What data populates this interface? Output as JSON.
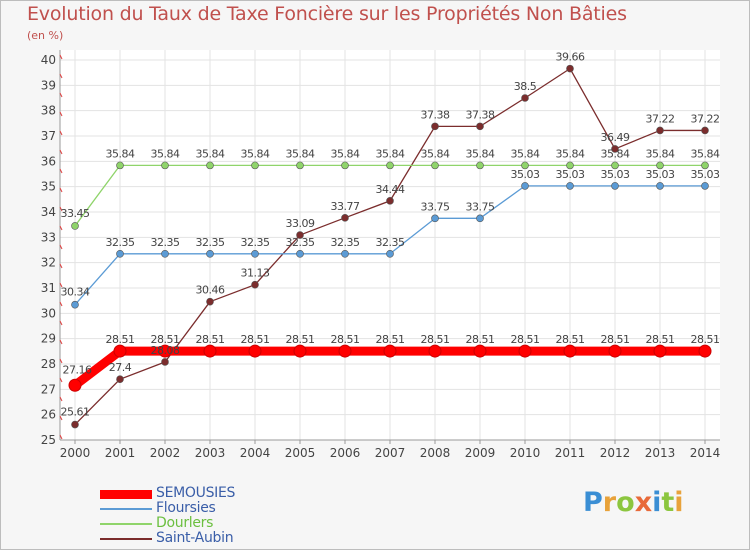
{
  "title": "Evolution du Taux de Taxe Foncière sur les Propriétés Non Bâties",
  "unit_label": "(en %)",
  "logo": {
    "text": "Proxiti",
    "letters": [
      {
        "ch": "P",
        "color": "#3a8ed4"
      },
      {
        "ch": "r",
        "color": "#e8a23a"
      },
      {
        "ch": "o",
        "color": "#8cc63f"
      },
      {
        "ch": "x",
        "color": "#e86a3a"
      },
      {
        "ch": "i",
        "color": "#3a8ed4"
      },
      {
        "ch": "t",
        "color": "#8cc63f"
      },
      {
        "ch": "i",
        "color": "#e8a23a"
      }
    ]
  },
  "chart_data": {
    "type": "line",
    "title": "Evolution du Taux de Taxe Foncière sur les Propriétés Non Bâties",
    "ylabel": "(en %)",
    "xlabel": "",
    "x": [
      "2000",
      "2001",
      "2002",
      "2003",
      "2004",
      "2005",
      "2006",
      "2007",
      "2008",
      "2009",
      "2010",
      "2011",
      "2012",
      "2013",
      "2014"
    ],
    "ylim": [
      25,
      40
    ],
    "yticks": [
      "25",
      "26",
      "27",
      "28",
      "29",
      "30",
      "31",
      "32",
      "33",
      "34",
      "35",
      "36",
      "37",
      "38",
      "39",
      "40"
    ],
    "grid": true,
    "legend_position": "bottom-left",
    "series": [
      {
        "name": "SEMOUSIES",
        "color": "#ff0000",
        "values": [
          27.16,
          28.51,
          28.51,
          28.51,
          28.51,
          28.51,
          28.51,
          28.51,
          28.51,
          28.51,
          28.51,
          28.51,
          28.51,
          28.51,
          28.51
        ],
        "labels": [
          "27.16",
          "28.51",
          "28.51",
          "28.51",
          "28.51",
          "28.51",
          "28.51",
          "28.51",
          "28.51",
          "28.51",
          "28.51",
          "28.51",
          "28.51",
          "28.51",
          "28.51"
        ]
      },
      {
        "name": "Floursies",
        "color": "#5b9bd5",
        "values": [
          30.34,
          32.35,
          32.35,
          32.35,
          32.35,
          32.35,
          32.35,
          32.35,
          33.75,
          33.75,
          35.03,
          35.03,
          35.03,
          35.03,
          35.03
        ],
        "labels": [
          "30.34",
          "32.35",
          "32.35",
          "32.35",
          "32.35",
          "32.35",
          "32.35",
          "32.35",
          "33.75",
          "33.75",
          "35.03",
          "35.03",
          "35.03",
          "35.03",
          "35.03"
        ]
      },
      {
        "name": "Dourlers",
        "color": "#8fd46a",
        "values": [
          33.45,
          35.84,
          35.84,
          35.84,
          35.84,
          35.84,
          35.84,
          35.84,
          35.84,
          35.84,
          35.84,
          35.84,
          35.84,
          35.84,
          35.84
        ],
        "labels": [
          "33.45",
          "35.84",
          "35.84",
          "35.84",
          "35.84",
          "35.84",
          "35.84",
          "35.84",
          "35.84",
          "35.84",
          "35.84",
          "35.84",
          "35.84",
          "35.84",
          "35.84"
        ]
      },
      {
        "name": "Saint-Aubin",
        "color": "#7b2d2d",
        "values": [
          25.61,
          27.4,
          28.08,
          30.46,
          31.13,
          33.09,
          33.77,
          34.44,
          37.38,
          37.38,
          38.5,
          39.66,
          36.49,
          37.22,
          37.22
        ],
        "labels": [
          "25.61",
          "27.4",
          "28.08",
          "30.46",
          "31.13",
          "33.09",
          "33.77",
          "34.44",
          "37.38",
          "37.38",
          "38.5",
          "39.66",
          "36.49",
          "37.22",
          "37.22"
        ]
      }
    ]
  }
}
